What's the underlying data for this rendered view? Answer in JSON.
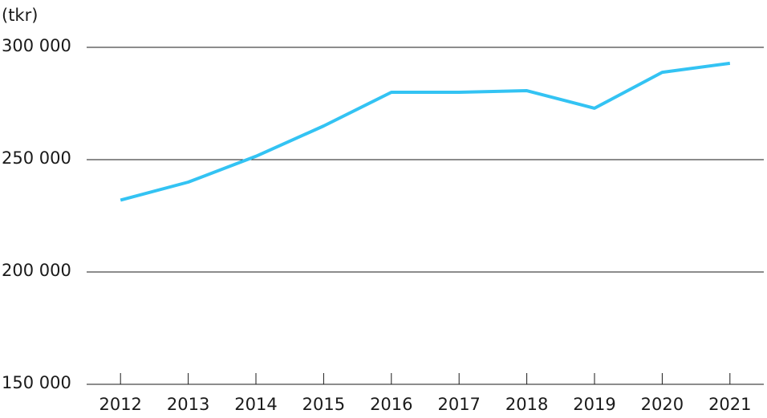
{
  "chart_data": {
    "type": "line",
    "y_label": "(tkr)",
    "categories": [
      "2012",
      "2013",
      "2014",
      "2015",
      "2016",
      "2017",
      "2018",
      "2019",
      "2020",
      "2021"
    ],
    "series": [
      {
        "color": "#33c3f3",
        "values": [
          232000,
          240000,
          251500,
          265000,
          280000,
          280000,
          280700,
          272900,
          288900,
          292900
        ]
      }
    ],
    "ylim": [
      150000,
      300000
    ],
    "yticks": [
      {
        "value": 150000,
        "label": "150 000"
      },
      {
        "value": 200000,
        "label": "200 000"
      },
      {
        "value": 250000,
        "label": "250 000"
      },
      {
        "value": 300000,
        "label": "300 000"
      }
    ],
    "grid": true
  }
}
